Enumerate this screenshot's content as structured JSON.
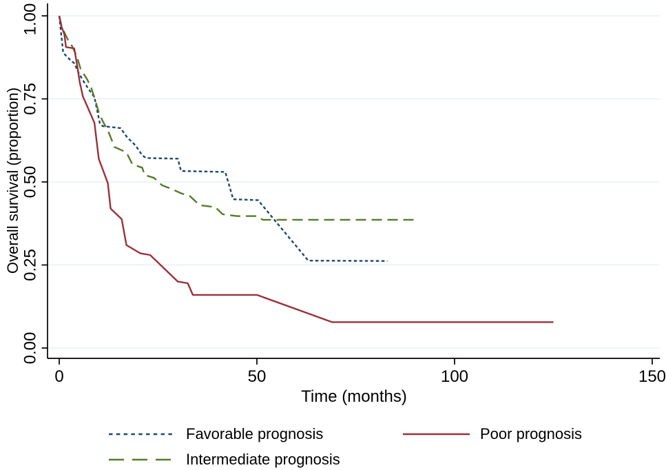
{
  "chart_data": {
    "type": "line",
    "subtype": "kaplan-meier-survival",
    "title": "",
    "xlabel": "Time (months)",
    "ylabel": "Overall survival (proportion)",
    "xlim": [
      0,
      151
    ],
    "ylim": [
      0,
      1
    ],
    "xticks": [
      0,
      50,
      100,
      150
    ],
    "ytick_labels": [
      "0.00",
      "0.25",
      "0.50",
      "0.75",
      "1.00"
    ],
    "ytick_values": [
      0,
      0.25,
      0.5,
      0.75,
      1.0
    ],
    "grid": "horizontal",
    "gridline_color": "#e0edf3",
    "axis_color": "#000000",
    "legend_position": "bottom",
    "series": [
      {
        "id": "favorable",
        "name": "Favorable prognosis",
        "color": "#1a476f",
        "line_style": "short-dash",
        "points": [
          [
            0,
            1.0
          ],
          [
            0.7,
            0.923
          ],
          [
            1,
            0.89
          ],
          [
            1.9,
            0.877
          ],
          [
            3.8,
            0.857
          ],
          [
            5,
            0.826
          ],
          [
            6.3,
            0.8
          ],
          [
            7.3,
            0.782
          ],
          [
            8.9,
            0.755
          ],
          [
            10.3,
            0.675
          ],
          [
            11,
            0.668
          ],
          [
            15.5,
            0.662
          ],
          [
            17.2,
            0.634
          ],
          [
            19.3,
            0.61
          ],
          [
            21,
            0.58
          ],
          [
            22,
            0.572
          ],
          [
            30,
            0.57
          ],
          [
            30.8,
            0.533
          ],
          [
            42,
            0.53
          ],
          [
            44,
            0.448
          ],
          [
            50.3,
            0.445
          ],
          [
            63,
            0.263
          ],
          [
            83,
            0.262
          ]
        ]
      },
      {
        "id": "intermediate",
        "name": "Intermediate prognosis",
        "color": "#567a28",
        "line_style": "long-dash",
        "points": [
          [
            0,
            1.0
          ],
          [
            0.7,
            0.965
          ],
          [
            2.4,
            0.923
          ],
          [
            3.2,
            0.91
          ],
          [
            4.5,
            0.877
          ],
          [
            5.4,
            0.84
          ],
          [
            7,
            0.81
          ],
          [
            8,
            0.787
          ],
          [
            9,
            0.75
          ],
          [
            10,
            0.71
          ],
          [
            11,
            0.683
          ],
          [
            12.3,
            0.655
          ],
          [
            14,
            0.605
          ],
          [
            17,
            0.589
          ],
          [
            18.5,
            0.553
          ],
          [
            21,
            0.543
          ],
          [
            21.6,
            0.521
          ],
          [
            24,
            0.512
          ],
          [
            26,
            0.49
          ],
          [
            28,
            0.481
          ],
          [
            31,
            0.465
          ],
          [
            33,
            0.458
          ],
          [
            35.5,
            0.43
          ],
          [
            39.5,
            0.424
          ],
          [
            41.3,
            0.403
          ],
          [
            45,
            0.397
          ],
          [
            50,
            0.397
          ],
          [
            51.5,
            0.386
          ],
          [
            91,
            0.386
          ]
        ]
      },
      {
        "id": "poor",
        "name": "Poor prognosis",
        "color": "#9a3139",
        "line_style": "solid",
        "points": [
          [
            0,
            1.0
          ],
          [
            0.5,
            0.97
          ],
          [
            1.3,
            0.944
          ],
          [
            1.7,
            0.906
          ],
          [
            3.8,
            0.902
          ],
          [
            4.5,
            0.854
          ],
          [
            5.2,
            0.8
          ],
          [
            6,
            0.757
          ],
          [
            7,
            0.73
          ],
          [
            8.9,
            0.678
          ],
          [
            10,
            0.57
          ],
          [
            12.3,
            0.496
          ],
          [
            13,
            0.42
          ],
          [
            15.8,
            0.388
          ],
          [
            17,
            0.31
          ],
          [
            20.5,
            0.285
          ],
          [
            23,
            0.28
          ],
          [
            30,
            0.2
          ],
          [
            32.5,
            0.195
          ],
          [
            33.8,
            0.16
          ],
          [
            50,
            0.16
          ],
          [
            69,
            0.078
          ],
          [
            125,
            0.078
          ]
        ]
      }
    ]
  }
}
